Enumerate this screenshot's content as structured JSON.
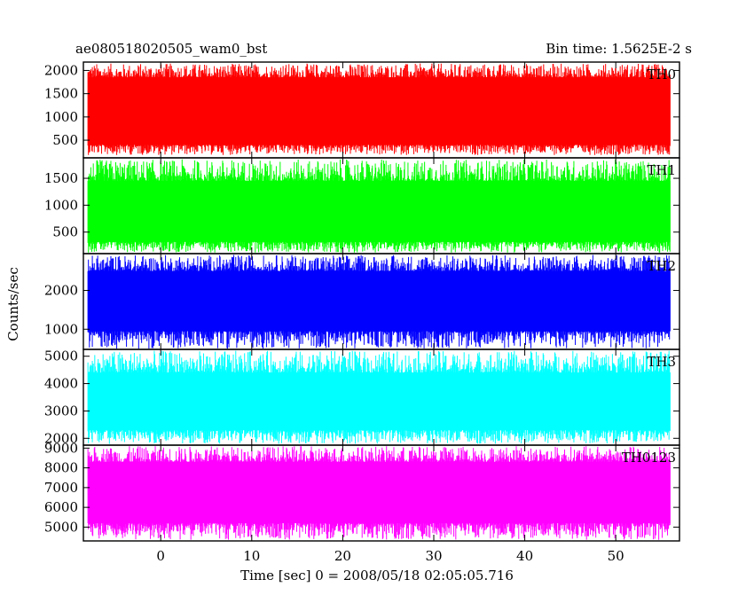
{
  "chart_data": {
    "type": "line",
    "title_left": "ae080518020505_wam0_bst",
    "title_right": "Bin time: 1.5625E-2 s",
    "xlabel": "Time [sec] 0 = 2008/05/18 02:05:05.716",
    "ylabel": "Counts/sec",
    "xlim": [
      -8.5,
      57
    ],
    "x_ticks": [
      0,
      10,
      20,
      30,
      40,
      50
    ],
    "x_tick_labels": [
      "0",
      "10",
      "20",
      "30",
      "40",
      "50"
    ],
    "data_x_range": [
      -8,
      56
    ],
    "panels": [
      {
        "name": "TH0",
        "color": "#ff0000",
        "ylim": [
          120,
          2180
        ],
        "y_ticks": [
          500,
          1000,
          1500,
          2000
        ],
        "y_tick_labels": [
          "500",
          "1000",
          "1500",
          "2000"
        ],
        "band_low": 400,
        "band_high": 1850,
        "noise_min": 180,
        "noise_max": 2150
      },
      {
        "name": "TH1",
        "color": "#00ff00",
        "ylim": [
          100,
          1880
        ],
        "y_ticks": [
          500,
          1000,
          1500
        ],
        "y_tick_labels": [
          "500",
          "1000",
          "1500"
        ],
        "band_low": 320,
        "band_high": 1450,
        "noise_min": 120,
        "noise_max": 1850
      },
      {
        "name": "TH2",
        "color": "#0000ff",
        "ylim": [
          480,
          2950
        ],
        "y_ticks": [
          1000,
          2000
        ],
        "y_tick_labels": [
          "1000",
          "2000"
        ],
        "band_low": 950,
        "band_high": 2500,
        "noise_min": 500,
        "noise_max": 2920
      },
      {
        "name": "TH3",
        "color": "#00ffff",
        "ylim": [
          1750,
          5250
        ],
        "y_ticks": [
          2000,
          3000,
          4000,
          5000
        ],
        "y_tick_labels": [
          "2000",
          "3000",
          "4000",
          "5000"
        ],
        "band_low": 2300,
        "band_high": 4400,
        "noise_min": 1800,
        "noise_max": 5200
      },
      {
        "name": "TH0123",
        "color": "#ff00ff",
        "ylim": [
          4300,
          9150
        ],
        "y_ticks": [
          5000,
          6000,
          7000,
          8000,
          9000
        ],
        "y_tick_labels": [
          "5000",
          "6000",
          "7000",
          "8000",
          "9000"
        ],
        "band_low": 5200,
        "band_high": 8300,
        "noise_min": 4350,
        "noise_max": 9100
      }
    ]
  }
}
